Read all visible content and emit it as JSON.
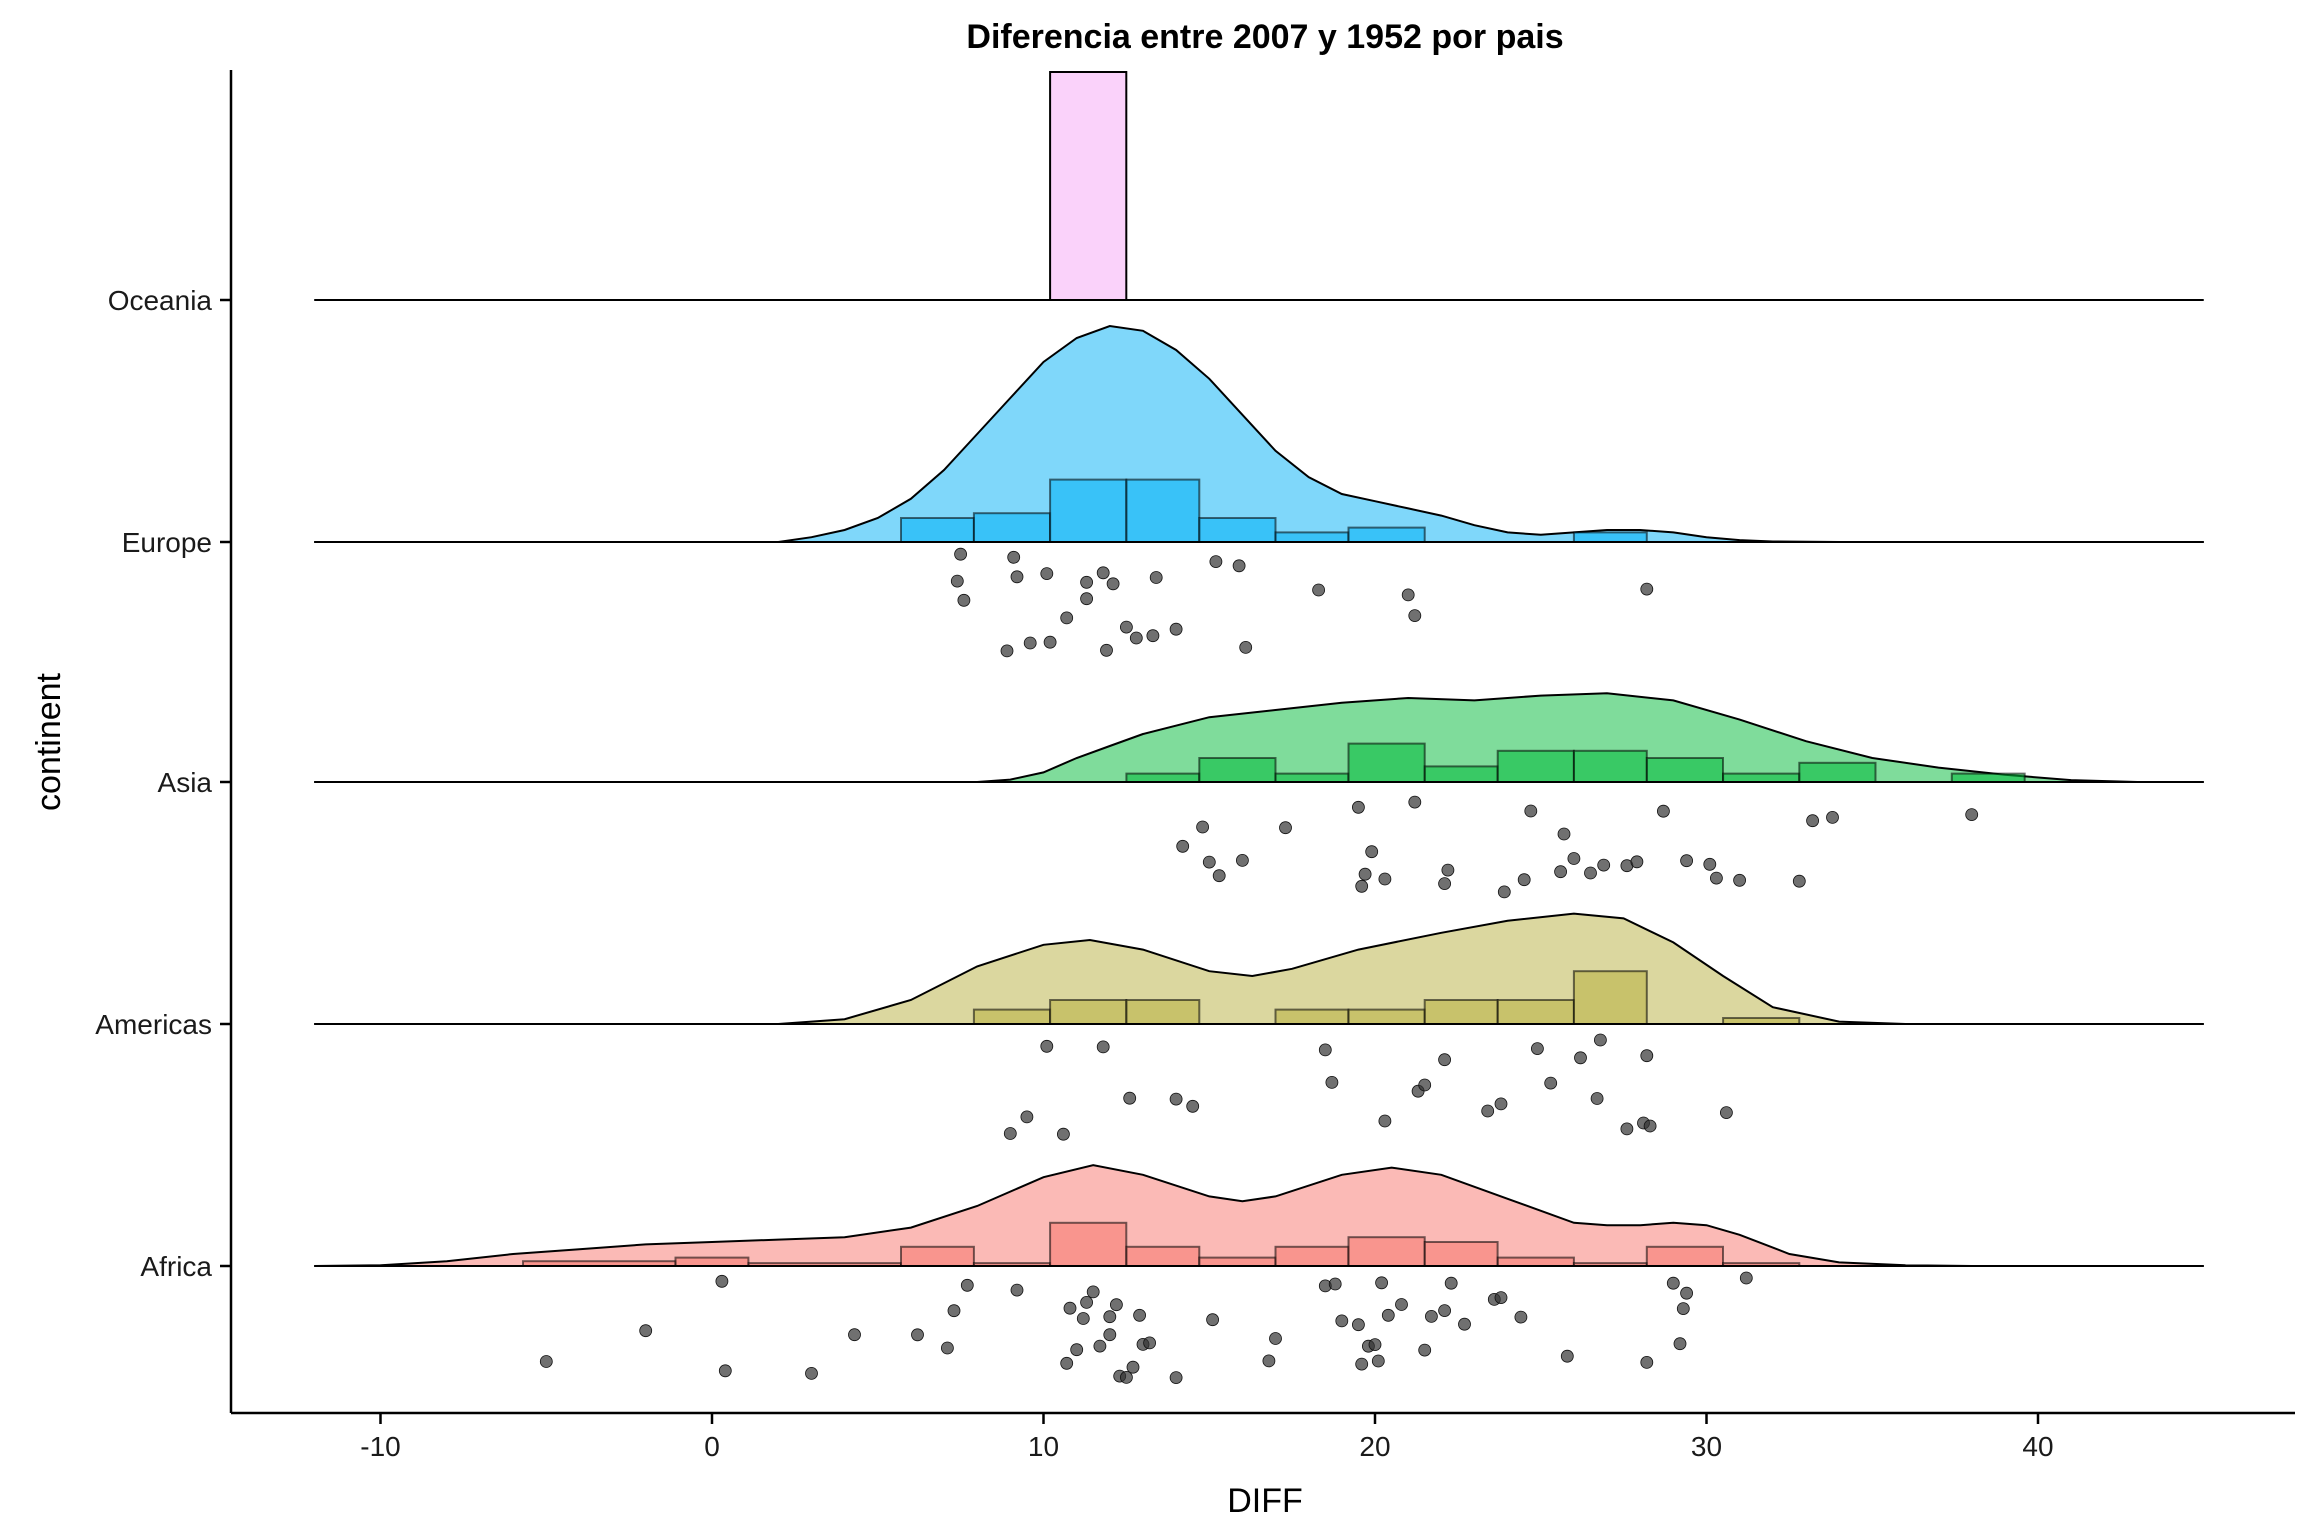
{
  "chart_data": {
    "type": "raincloud",
    "title": "Diferencia entre 2007 y 1952 por pais",
    "xlabel": "DIFF",
    "ylabel": "continent",
    "xlim": [
      -15,
      48
    ],
    "x_ticks": [
      -10,
      0,
      10,
      20,
      30,
      40
    ],
    "grid": false,
    "legend": "none",
    "categories": [
      "Africa",
      "Americas",
      "Asia",
      "Europe",
      "Oceania"
    ],
    "series": [
      {
        "name": "Africa",
        "color": "#F8766D",
        "density": [
          [
            -12,
            0
          ],
          [
            -10,
            0.003
          ],
          [
            -8,
            0.02
          ],
          [
            -6,
            0.05
          ],
          [
            -4,
            0.07
          ],
          [
            -2,
            0.09
          ],
          [
            0,
            0.1
          ],
          [
            2,
            0.11
          ],
          [
            4,
            0.12
          ],
          [
            6,
            0.16
          ],
          [
            8,
            0.25
          ],
          [
            10,
            0.37
          ],
          [
            11.5,
            0.42
          ],
          [
            13,
            0.38
          ],
          [
            15,
            0.29
          ],
          [
            16,
            0.27
          ],
          [
            17,
            0.29
          ],
          [
            19,
            0.38
          ],
          [
            20.5,
            0.41
          ],
          [
            22,
            0.38
          ],
          [
            24,
            0.28
          ],
          [
            26,
            0.18
          ],
          [
            27,
            0.17
          ],
          [
            28,
            0.17
          ],
          [
            29,
            0.18
          ],
          [
            30,
            0.17
          ],
          [
            31,
            0.13
          ],
          [
            32.5,
            0.05
          ],
          [
            34,
            0.015
          ],
          [
            36,
            0.003
          ],
          [
            38,
            0
          ],
          [
            45,
            0
          ]
        ],
        "histogram": [
          [
            -5.7,
            -1.1,
            0.02
          ],
          [
            -1.1,
            1.1,
            0.035
          ],
          [
            1.1,
            5.7,
            0.012
          ],
          [
            5.7,
            7.9,
            0.08
          ],
          [
            7.9,
            10.2,
            0.012
          ],
          [
            10.2,
            12.5,
            0.18
          ],
          [
            12.5,
            14.7,
            0.08
          ],
          [
            14.7,
            17,
            0.035
          ],
          [
            17,
            19.2,
            0.08
          ],
          [
            19.2,
            21.5,
            0.12
          ],
          [
            21.5,
            23.7,
            0.1
          ],
          [
            23.7,
            26,
            0.035
          ],
          [
            26,
            28.2,
            0.012
          ],
          [
            28.2,
            30.5,
            0.08
          ],
          [
            30.5,
            32.8,
            0.012
          ]
        ],
        "points": [
          -5,
          -2,
          0.3,
          0.4,
          3,
          4.3,
          6.2,
          7.1,
          7.3,
          7.7,
          9.2,
          10.7,
          10.8,
          11,
          11.2,
          11.3,
          11.5,
          11.7,
          12,
          12,
          12.2,
          12.3,
          12.5,
          12.7,
          12.9,
          13,
          13.2,
          14,
          15.1,
          16.8,
          17,
          18.5,
          18.8,
          19,
          19.5,
          19.6,
          19.8,
          20,
          20.1,
          20.2,
          20.4,
          20.8,
          21.5,
          21.7,
          22.1,
          22.3,
          22.7,
          23.6,
          23.8,
          24.4,
          25.8,
          28.2,
          29,
          29.2,
          29.3,
          29.4,
          31.2
        ]
      },
      {
        "name": "Americas",
        "color": "#B8B040",
        "density": [
          [
            -12,
            0
          ],
          [
            2,
            0
          ],
          [
            4,
            0.02
          ],
          [
            6,
            0.1
          ],
          [
            8,
            0.24
          ],
          [
            10,
            0.33
          ],
          [
            11.4,
            0.35
          ],
          [
            13,
            0.31
          ],
          [
            15,
            0.22
          ],
          [
            16.3,
            0.2
          ],
          [
            17.5,
            0.23
          ],
          [
            19.5,
            0.31
          ],
          [
            22,
            0.38
          ],
          [
            24,
            0.43
          ],
          [
            26,
            0.46
          ],
          [
            27.5,
            0.44
          ],
          [
            29,
            0.34
          ],
          [
            30.5,
            0.2
          ],
          [
            32,
            0.07
          ],
          [
            34,
            0.01
          ],
          [
            36,
            0
          ],
          [
            45,
            0
          ]
        ],
        "histogram": [
          [
            7.9,
            10.2,
            0.06
          ],
          [
            10.2,
            12.5,
            0.1
          ],
          [
            12.5,
            14.7,
            0.1
          ],
          [
            14.7,
            17,
            0
          ],
          [
            17,
            19.2,
            0.06
          ],
          [
            19.2,
            21.5,
            0.06
          ],
          [
            21.5,
            23.7,
            0.1
          ],
          [
            23.7,
            26,
            0.1
          ],
          [
            26,
            28.2,
            0.22
          ],
          [
            28.2,
            30.5,
            0
          ],
          [
            30.5,
            32.8,
            0.025
          ]
        ],
        "points": [
          9,
          9.5,
          10.1,
          10.6,
          11.8,
          12.6,
          14,
          14.5,
          18.5,
          18.7,
          20.3,
          21.3,
          21.5,
          22.1,
          23.4,
          23.8,
          24.9,
          25.3,
          26.2,
          26.7,
          26.8,
          27.6,
          28.1,
          28.2,
          28.3,
          30.6
        ]
      },
      {
        "name": "Asia",
        "color": "#00BA38",
        "density": [
          [
            -12,
            0
          ],
          [
            8,
            0
          ],
          [
            9,
            0.01
          ],
          [
            10,
            0.04
          ],
          [
            11,
            0.1
          ],
          [
            12,
            0.15
          ],
          [
            13,
            0.2
          ],
          [
            15,
            0.27
          ],
          [
            17,
            0.3
          ],
          [
            19,
            0.33
          ],
          [
            21,
            0.35
          ],
          [
            23,
            0.34
          ],
          [
            25,
            0.36
          ],
          [
            27,
            0.37
          ],
          [
            29,
            0.34
          ],
          [
            31,
            0.26
          ],
          [
            33,
            0.17
          ],
          [
            35,
            0.1
          ],
          [
            37,
            0.06
          ],
          [
            39,
            0.03
          ],
          [
            41,
            0.008
          ],
          [
            43,
            0
          ],
          [
            45,
            0
          ]
        ],
        "histogram": [
          [
            12.5,
            14.7,
            0.035
          ],
          [
            14.7,
            17,
            0.1
          ],
          [
            17,
            19.2,
            0.035
          ],
          [
            19.2,
            21.5,
            0.16
          ],
          [
            21.5,
            23.7,
            0.065
          ],
          [
            23.7,
            26,
            0.13
          ],
          [
            26,
            28.2,
            0.13
          ],
          [
            28.2,
            30.5,
            0.1
          ],
          [
            30.5,
            32.8,
            0.035
          ],
          [
            32.8,
            35.1,
            0.08
          ],
          [
            35.1,
            37.4,
            0
          ],
          [
            37.4,
            39.6,
            0.035
          ]
        ],
        "points": [
          14.2,
          14.8,
          15,
          15.3,
          16,
          17.3,
          19.5,
          19.6,
          19.7,
          19.9,
          20.3,
          21.2,
          22.1,
          22.2,
          23.9,
          24.5,
          24.7,
          25.6,
          25.7,
          26,
          26.5,
          26.9,
          27.6,
          27.9,
          28.7,
          29.4,
          30.1,
          30.3,
          31,
          32.8,
          33.2,
          33.8,
          38
        ]
      },
      {
        "name": "Europe",
        "color": "#00B0F6",
        "density": [
          [
            -12,
            0
          ],
          [
            2,
            0
          ],
          [
            3,
            0.02
          ],
          [
            4,
            0.05
          ],
          [
            5,
            0.1
          ],
          [
            6,
            0.18
          ],
          [
            7,
            0.3
          ],
          [
            8,
            0.45
          ],
          [
            9,
            0.6
          ],
          [
            10,
            0.75
          ],
          [
            11,
            0.85
          ],
          [
            12,
            0.9
          ],
          [
            13,
            0.88
          ],
          [
            14,
            0.8
          ],
          [
            15,
            0.68
          ],
          [
            16,
            0.53
          ],
          [
            17,
            0.38
          ],
          [
            18,
            0.27
          ],
          [
            19,
            0.2
          ],
          [
            20,
            0.17
          ],
          [
            21,
            0.14
          ],
          [
            22,
            0.11
          ],
          [
            23,
            0.07
          ],
          [
            24,
            0.04
          ],
          [
            25,
            0.03
          ],
          [
            26,
            0.04
          ],
          [
            27,
            0.05
          ],
          [
            28,
            0.05
          ],
          [
            29,
            0.04
          ],
          [
            30,
            0.02
          ],
          [
            31,
            0.008
          ],
          [
            32,
            0.002
          ],
          [
            34,
            0
          ],
          [
            45,
            0
          ]
        ],
        "histogram": [
          [
            5.7,
            7.9,
            0.1
          ],
          [
            7.9,
            10.2,
            0.12
          ],
          [
            10.2,
            12.5,
            0.26
          ],
          [
            12.5,
            14.7,
            0.26
          ],
          [
            14.7,
            17,
            0.1
          ],
          [
            17,
            19.2,
            0.04
          ],
          [
            19.2,
            21.5,
            0.06
          ],
          [
            21.5,
            23.7,
            0
          ],
          [
            23.7,
            26,
            0
          ],
          [
            26,
            28.2,
            0.04
          ]
        ],
        "points": [
          7.4,
          7.5,
          7.6,
          8.9,
          9.1,
          9.2,
          9.6,
          10.1,
          10.2,
          10.7,
          11.3,
          11.3,
          11.8,
          11.9,
          12.1,
          12.5,
          12.8,
          13.3,
          13.4,
          14,
          15.2,
          15.9,
          16.1,
          18.3,
          21,
          21.2,
          28.2
        ]
      },
      {
        "name": "Oceania",
        "color": "#F07FF0",
        "density": [],
        "histogram": [
          [
            10.2,
            12.5,
            0.95
          ]
        ],
        "points": []
      }
    ]
  }
}
